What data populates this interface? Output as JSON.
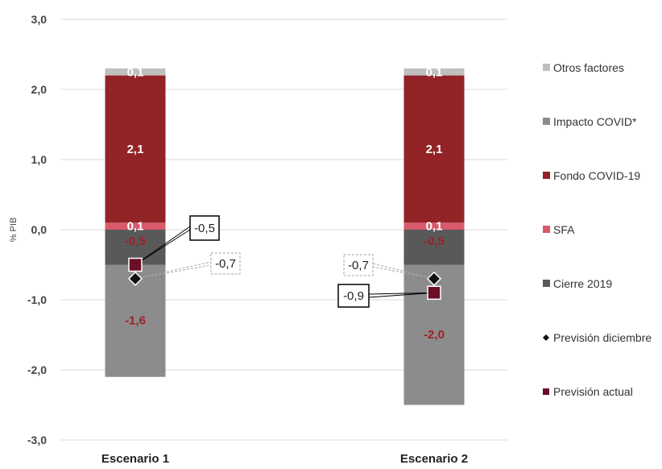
{
  "chart_data": {
    "type": "bar",
    "stacked": true,
    "ylabel": "% PIB",
    "ylim": [
      -3.0,
      3.0
    ],
    "yticks": [
      "3,0",
      "2,0",
      "1,0",
      "0,0",
      "-1,0",
      "-2,0",
      "-3,0"
    ],
    "ytick_values": [
      3,
      2,
      1,
      0,
      -1,
      -2,
      -3
    ],
    "grid": true,
    "legend_position": "right",
    "categories": [
      "Escenario 1",
      "Escenario 2"
    ],
    "series": [
      {
        "name": "Otros factores",
        "color": "#bfbfbf",
        "values": [
          0.1,
          0.1
        ],
        "labels": [
          "0,1",
          "0,1"
        ],
        "label_color": "#ffffff"
      },
      {
        "name": "Impacto COVID*",
        "color": "#8c8c8c",
        "values": [
          -1.6,
          -2.0
        ],
        "labels": [
          "-1,6",
          "-2,0"
        ],
        "label_color": "#9b2226"
      },
      {
        "name": "Fondo COVID-19",
        "color": "#922326",
        "values": [
          2.1,
          2.1
        ],
        "labels": [
          "2,1",
          "2,1"
        ],
        "label_color": "#ffffff"
      },
      {
        "name": "SFA",
        "color": "#d9596c",
        "values": [
          0.1,
          0.1
        ],
        "labels": [
          "0,1",
          "0,1"
        ],
        "label_color": "#ffffff"
      },
      {
        "name": "Cierre 2019",
        "color": "#595959",
        "values": [
          -0.5,
          -0.5
        ],
        "labels": [
          "-0,5",
          "-0,5"
        ],
        "label_color": "#9b2226"
      }
    ],
    "markers": [
      {
        "name": "Previsión diciembre",
        "shape": "diamond",
        "color": "#111111",
        "values": [
          -0.7,
          -0.7
        ],
        "labels": [
          "-0,7",
          "-0,7"
        ],
        "callout_style": "dashed"
      },
      {
        "name": "Previsión actual",
        "shape": "square",
        "color": "#6b0f24",
        "values": [
          -0.5,
          -0.9
        ],
        "labels": [
          "-0,5",
          "-0,9"
        ],
        "callout_style": "solid"
      }
    ],
    "legend_order": [
      "Otros factores",
      "Impacto COVID*",
      "Fondo COVID-19",
      "SFA",
      "Cierre 2019",
      "Previsión diciembre",
      "Previsión actual"
    ]
  }
}
